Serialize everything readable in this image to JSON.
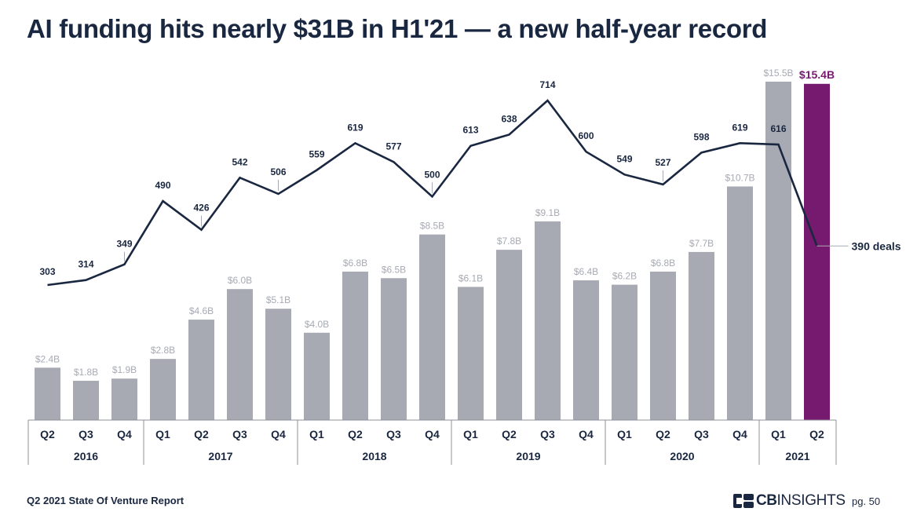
{
  "title": "AI funding hits nearly $31B in H1'21 — a new half-year record",
  "footer": {
    "report": "Q2 2021 State Of Venture Report",
    "brand_cb": "CB",
    "brand_rest": "INSIGHTS",
    "page": "pg. 50"
  },
  "colors": {
    "bar": "#a7aab3",
    "highlight": "#761a6f",
    "line": "#1a2740",
    "bar_label": "#a7aab3",
    "text": "#1a2740"
  },
  "chart_data": {
    "type": "bar",
    "categories": [
      "Q2",
      "Q3",
      "Q4",
      "Q1",
      "Q2",
      "Q3",
      "Q4",
      "Q1",
      "Q2",
      "Q3",
      "Q4",
      "Q1",
      "Q2",
      "Q3",
      "Q4",
      "Q1",
      "Q2",
      "Q3",
      "Q4",
      "Q1",
      "Q2"
    ],
    "years": [
      {
        "label": "2016",
        "count": 3
      },
      {
        "label": "2017",
        "count": 4
      },
      {
        "label": "2018",
        "count": 4
      },
      {
        "label": "2019",
        "count": 4
      },
      {
        "label": "2020",
        "count": 4
      },
      {
        "label": "2021",
        "count": 2
      }
    ],
    "series": [
      {
        "kind": "bar",
        "values": [
          2.4,
          1.8,
          1.9,
          2.8,
          4.6,
          6.0,
          5.1,
          4.0,
          6.8,
          6.5,
          8.5,
          6.1,
          7.8,
          9.1,
          6.4,
          6.2,
          6.8,
          7.7,
          10.7,
          15.5,
          15.4
        ],
        "labels": [
          "$2.4B",
          "$1.8B",
          "$1.9B",
          "$2.8B",
          "$4.6B",
          "$6.0B",
          "$5.1B",
          "$4.0B",
          "$6.8B",
          "$6.5B",
          "$8.5B",
          "$6.1B",
          "$7.8B",
          "$9.1B",
          "$6.4B",
          "$6.2B",
          "$6.8B",
          "$7.7B",
          "$10.7B",
          "$15.5B",
          "$15.4B"
        ],
        "highlight_index": 20
      },
      {
        "kind": "line",
        "values": [
          303,
          314,
          349,
          490,
          426,
          542,
          506,
          559,
          619,
          577,
          500,
          613,
          638,
          714,
          600,
          549,
          527,
          598,
          619,
          616,
          390
        ],
        "labels": [
          "303",
          "314",
          "349",
          "490",
          "426",
          "542",
          "506",
          "559",
          "619",
          "577",
          "500",
          "613",
          "638",
          "714",
          "600",
          "549",
          "527",
          "598",
          "619",
          "616",
          "390 deals"
        ]
      }
    ],
    "ylim_bars": [
      0,
      15.5
    ],
    "ylim_line": [
      0,
      714
    ],
    "grid": false,
    "legend": "none"
  }
}
